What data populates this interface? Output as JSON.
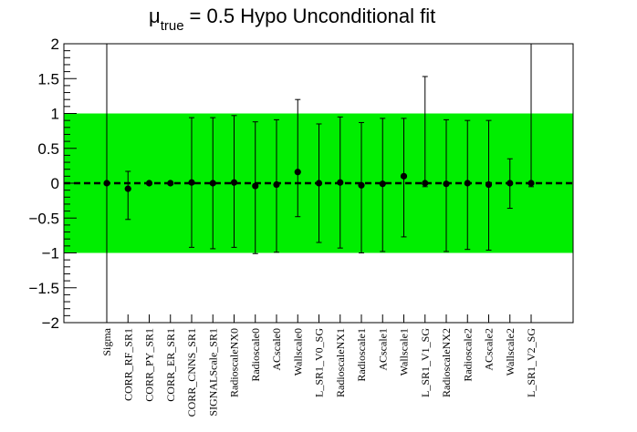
{
  "chart_data": {
    "type": "scatter",
    "title": {
      "symbol": "μ",
      "subscript": "true",
      "rest": "= 0.5 Hypo Unconditional fit"
    },
    "xlabel": "",
    "ylabel": "",
    "ylim": [
      -2,
      2
    ],
    "yticks": [
      {
        "value": 2,
        "label": "2"
      },
      {
        "value": 1.5,
        "label": "1.5"
      },
      {
        "value": 1,
        "label": "1"
      },
      {
        "value": 0.5,
        "label": "0.5"
      },
      {
        "value": 0,
        "label": "0"
      },
      {
        "value": -0.5,
        "label": "−0.5"
      },
      {
        "value": -1,
        "label": "−1"
      },
      {
        "value": -1.5,
        "label": "−1.5"
      },
      {
        "value": -2,
        "label": "−2"
      }
    ],
    "band": {
      "low": -1,
      "high": 1,
      "color": "#00ee00"
    },
    "reference_line": {
      "value": 0,
      "style": "dashed"
    },
    "categories": [
      "Sigma",
      "CORR_RF_SR1",
      "CORR_PY_SR1",
      "CORR_ER_SR1",
      "CORR_CNNS_SR1",
      "SIGNALScale_SR1",
      "RadioscaleNX0",
      "Radioscale0",
      "ACscale0",
      "Wallscale0",
      "L_SR1_V0_SG",
      "RadioscaleNX1",
      "Radioscale1",
      "ACscale1",
      "Wallscale1",
      "L_SR1_V1_SG",
      "RadioscaleNX2",
      "Radioscale2",
      "ACscale2",
      "Wallscale2",
      "L_SR1_V2_SG"
    ],
    "values": [
      0,
      -0.08,
      0,
      0,
      0.01,
      0,
      0.01,
      -0.04,
      -0.02,
      0.16,
      0,
      0.01,
      -0.03,
      -0.01,
      0.1,
      0,
      -0.01,
      0,
      -0.02,
      0,
      0
    ],
    "err_low": [
      2.2,
      0.44,
      0,
      0,
      0.93,
      0.94,
      0.93,
      0.97,
      0.97,
      0.64,
      0.85,
      0.94,
      0.97,
      0.97,
      0.87,
      0.05,
      0.97,
      0.95,
      0.94,
      0.36,
      0.05
    ],
    "err_high": [
      2.2,
      0.25,
      0,
      0,
      0.93,
      0.94,
      0.96,
      0.92,
      0.93,
      1.04,
      0.85,
      0.94,
      0.9,
      0.94,
      0.83,
      1.53,
      0.92,
      0.9,
      0.92,
      0.35,
      2.2
    ]
  }
}
